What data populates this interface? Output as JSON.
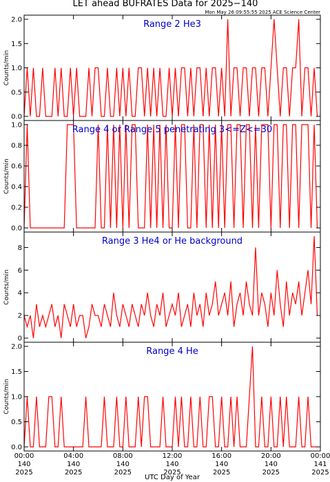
{
  "title": "LET ahead BUFRATES Data for 2025−140",
  "subtitle": "Mon May 26 09:55:55 2025 ACE Science Center",
  "xlabel": "UTC Day of Year",
  "chart_data": [
    {
      "type": "line",
      "title": "Range 2 He3",
      "ylabel": "Counts/min",
      "color": "#ff0000",
      "x": [
        0,
        0.25,
        0.5,
        0.75,
        1,
        1.25,
        1.5,
        1.75,
        2,
        2.25,
        2.5,
        2.75,
        3,
        3.25,
        3.5,
        3.75,
        4,
        4.25,
        4.5,
        4.75,
        5,
        5.25,
        5.5,
        5.75,
        6,
        6.25,
        6.5,
        6.75,
        7,
        7.25,
        7.5,
        7.75,
        8,
        8.25,
        8.5,
        8.75,
        9,
        9.25,
        9.5,
        9.75,
        10,
        10.25,
        10.5,
        10.75,
        11,
        11.25,
        11.5,
        11.75,
        12,
        12.25,
        12.5,
        12.75,
        13,
        13.25,
        13.5,
        13.75,
        14,
        14.25,
        14.5,
        14.75,
        15,
        15.25,
        15.5,
        15.75,
        16,
        16.25,
        16.5,
        16.75,
        17,
        17.25,
        17.5,
        17.75,
        18,
        18.25,
        18.5,
        18.75,
        19,
        19.25,
        19.5,
        19.75,
        20,
        20.25,
        20.5,
        20.75,
        21,
        21.25,
        21.5,
        21.75,
        22,
        22.25,
        22.5,
        22.75,
        23,
        23.25,
        23.5,
        23.75
      ],
      "values": [
        0,
        1,
        0,
        1,
        0,
        0,
        1,
        0,
        0,
        0,
        1,
        0,
        1,
        0,
        0,
        1,
        0,
        1,
        0,
        0,
        0,
        1,
        0,
        1,
        1,
        0,
        0,
        1,
        0,
        0,
        1,
        0,
        1,
        0,
        1,
        0,
        0,
        1,
        1,
        0,
        1,
        0,
        1,
        0,
        1,
        0,
        0,
        1,
        0,
        1,
        0,
        1,
        1,
        0,
        1,
        0,
        1,
        1,
        0,
        1,
        0,
        1,
        1,
        0,
        1,
        0,
        2,
        0,
        1,
        1,
        0,
        1,
        1,
        0,
        1,
        1,
        0,
        1,
        1,
        0,
        1,
        2,
        1,
        0,
        1,
        1,
        0,
        1,
        1,
        2,
        0,
        1,
        1,
        0,
        1,
        0
      ],
      "xlim": [
        0,
        24
      ],
      "ylim": [
        0,
        2
      ],
      "yticks": [
        {
          "value": 0,
          "label": "0.0"
        },
        {
          "value": 0.5,
          "label": "0.5"
        },
        {
          "value": 1,
          "label": "1.0"
        },
        {
          "value": 1.5,
          "label": "1.5"
        },
        {
          "value": 2,
          "label": "2.0"
        }
      ]
    },
    {
      "type": "line",
      "title": "Range 4 or Range 5 penetrating 3<=Z<=30",
      "ylabel": "Counts/min",
      "color": "#ff0000",
      "x": [
        0,
        0.25,
        0.5,
        0.75,
        1,
        1.25,
        1.5,
        1.75,
        2,
        2.25,
        2.5,
        2.75,
        3,
        3.25,
        3.5,
        3.75,
        4,
        4.25,
        4.5,
        4.75,
        5,
        5.25,
        5.5,
        5.75,
        6,
        6.25,
        6.5,
        6.75,
        7,
        7.25,
        7.5,
        7.75,
        8,
        8.25,
        8.5,
        8.75,
        9,
        9.25,
        9.5,
        9.75,
        10,
        10.25,
        10.5,
        10.75,
        11,
        11.25,
        11.5,
        11.75,
        12,
        12.25,
        12.5,
        12.75,
        13,
        13.25,
        13.5,
        13.75,
        14,
        14.25,
        14.5,
        14.75,
        15,
        15.25,
        15.5,
        15.75,
        16,
        16.25,
        16.5,
        16.75,
        17,
        17.25,
        17.5,
        17.75,
        18,
        18.25,
        18.5,
        18.75,
        19,
        19.25,
        19.5,
        19.75,
        20,
        20.25,
        20.5,
        20.75,
        21,
        21.25,
        21.5,
        21.75,
        22,
        22.25,
        22.5,
        22.75,
        23,
        23.25,
        23.5,
        23.75
      ],
      "values": [
        0,
        1,
        0,
        0,
        0,
        0,
        0,
        0,
        0,
        0,
        0,
        0,
        0,
        0,
        1,
        1,
        1,
        0,
        0,
        0,
        0,
        0,
        0,
        0,
        1,
        0,
        0,
        1,
        0,
        1,
        0,
        1,
        0,
        1,
        0,
        1,
        1,
        0,
        0,
        0,
        1,
        0,
        1,
        0,
        1,
        0,
        1,
        0,
        0,
        1,
        0,
        1,
        1,
        0,
        0,
        1,
        0,
        1,
        1,
        0,
        1,
        0,
        1,
        0,
        1,
        0,
        1,
        1,
        0,
        1,
        1,
        0,
        1,
        1,
        0,
        1,
        0,
        1,
        1,
        1,
        0,
        1,
        1,
        0,
        1,
        1,
        0,
        1,
        1,
        0,
        1,
        1,
        1,
        0,
        1,
        0
      ],
      "xlim": [
        0,
        24
      ],
      "ylim": [
        0,
        1
      ],
      "yticks": [
        {
          "value": 0,
          "label": "0.0"
        },
        {
          "value": 0.2,
          "label": "0.2"
        },
        {
          "value": 0.4,
          "label": "0.4"
        },
        {
          "value": 0.6,
          "label": "0.6"
        },
        {
          "value": 0.8,
          "label": "0.8"
        },
        {
          "value": 1,
          "label": "1.0"
        }
      ]
    },
    {
      "type": "line",
      "title": "Range 3 He4 or He background",
      "ylabel": "Counts/min",
      "color": "#ff0000",
      "x": [
        0,
        0.25,
        0.5,
        0.75,
        1,
        1.25,
        1.5,
        1.75,
        2,
        2.25,
        2.5,
        2.75,
        3,
        3.25,
        3.5,
        3.75,
        4,
        4.25,
        4.5,
        4.75,
        5,
        5.25,
        5.5,
        5.75,
        6,
        6.25,
        6.5,
        6.75,
        7,
        7.25,
        7.5,
        7.75,
        8,
        8.25,
        8.5,
        8.75,
        9,
        9.25,
        9.5,
        9.75,
        10,
        10.25,
        10.5,
        10.75,
        11,
        11.25,
        11.5,
        11.75,
        12,
        12.25,
        12.5,
        12.75,
        13,
        13.25,
        13.5,
        13.75,
        14,
        14.25,
        14.5,
        14.75,
        15,
        15.25,
        15.5,
        15.75,
        16,
        16.25,
        16.5,
        16.75,
        17,
        17.25,
        17.5,
        17.75,
        18,
        18.25,
        18.5,
        18.75,
        19,
        19.25,
        19.5,
        19.75,
        20,
        20.25,
        20.5,
        20.75,
        21,
        21.25,
        21.5,
        21.75,
        22,
        22.25,
        22.5,
        22.75,
        23,
        23.25,
        23.5,
        23.75
      ],
      "values": [
        2,
        1,
        2,
        0,
        3,
        1,
        2,
        1,
        2,
        3,
        1,
        2,
        0,
        3,
        2,
        1,
        3,
        1,
        2,
        2,
        0,
        1,
        3,
        2,
        2,
        1,
        3,
        2,
        1,
        4,
        2,
        1,
        3,
        2,
        1,
        3,
        2,
        1,
        3,
        2,
        4,
        2,
        1,
        3,
        2,
        4,
        1,
        2,
        3,
        2,
        4,
        1,
        2,
        3,
        1,
        4,
        2,
        3,
        1,
        4,
        2,
        3,
        5,
        2,
        3,
        4,
        2,
        5,
        1,
        3,
        4,
        2,
        5,
        3,
        2,
        8,
        2,
        4,
        3,
        1,
        4,
        2,
        6,
        3,
        1,
        5,
        2,
        4,
        3,
        5,
        2,
        4,
        6,
        3,
        9,
        2
      ],
      "xlim": [
        0,
        24
      ],
      "ylim": [
        0,
        9
      ],
      "yticks": [
        0,
        2,
        4,
        6,
        8
      ]
    },
    {
      "type": "line",
      "title": "Range 4 He",
      "ylabel": "Counts/min",
      "color": "#ff0000",
      "x": [
        0,
        0.25,
        0.5,
        0.75,
        1,
        1.25,
        1.5,
        1.75,
        2,
        2.25,
        2.5,
        2.75,
        3,
        3.25,
        3.5,
        3.75,
        4,
        4.25,
        4.5,
        4.75,
        5,
        5.25,
        5.5,
        5.75,
        6,
        6.25,
        6.5,
        6.75,
        7,
        7.25,
        7.5,
        7.75,
        8,
        8.25,
        8.5,
        8.75,
        9,
        9.25,
        9.5,
        9.75,
        10,
        10.25,
        10.5,
        10.75,
        11,
        11.25,
        11.5,
        11.75,
        12,
        12.25,
        12.5,
        12.75,
        13,
        13.25,
        13.5,
        13.75,
        14,
        14.25,
        14.5,
        14.75,
        15,
        15.25,
        15.5,
        15.75,
        16,
        16.25,
        16.5,
        16.75,
        17,
        17.25,
        17.5,
        17.75,
        18,
        18.25,
        18.5,
        18.75,
        19,
        19.25,
        19.5,
        19.75,
        20,
        20.25,
        20.5,
        20.75,
        21,
        21.25,
        21.5,
        21.75,
        22,
        22.25,
        22.5,
        22.75,
        23,
        23.25,
        23.5,
        23.75
      ],
      "values": [
        0,
        1,
        0,
        0,
        1,
        0,
        0,
        0,
        1,
        1,
        0,
        0,
        1,
        0,
        0,
        0,
        0,
        0,
        0,
        0,
        1,
        0,
        0,
        0,
        0,
        0,
        1,
        0,
        0,
        0,
        1,
        0,
        0,
        1,
        0,
        0,
        0,
        1,
        0,
        1,
        1,
        0,
        0,
        0,
        0,
        1,
        0,
        0,
        0,
        1,
        0,
        1,
        0,
        0,
        1,
        0,
        0,
        1,
        0,
        0,
        1,
        1,
        0,
        0,
        1,
        0,
        0,
        1,
        0,
        1,
        0,
        0,
        0,
        1,
        2,
        0,
        0,
        1,
        0,
        0,
        1,
        0,
        0,
        1,
        0,
        1,
        0,
        0,
        0,
        1,
        0,
        0,
        1,
        0,
        0,
        0
      ],
      "xlim": [
        0,
        24
      ],
      "ylim": [
        0,
        2
      ],
      "yticks": [
        {
          "value": 0,
          "label": "0.0"
        },
        {
          "value": 0.5,
          "label": "0.5"
        },
        {
          "value": 1,
          "label": "1.0"
        },
        {
          "value": 1.5,
          "label": "1.5"
        },
        {
          "value": 2,
          "label": "2.0"
        }
      ],
      "xticks": [
        {
          "value": 0,
          "label": "00:00\n140\n2025"
        },
        {
          "value": 4,
          "label": "04:00\n140\n2025"
        },
        {
          "value": 8,
          "label": "08:00\n140\n2025"
        },
        {
          "value": 12,
          "label": "12:00\n140\n2025"
        },
        {
          "value": 16,
          "label": "16:00\n140\n2025"
        },
        {
          "value": 20,
          "label": "20:00\n140\n2025"
        },
        {
          "value": 24,
          "label": "00:00\n141\n2025"
        }
      ]
    }
  ]
}
